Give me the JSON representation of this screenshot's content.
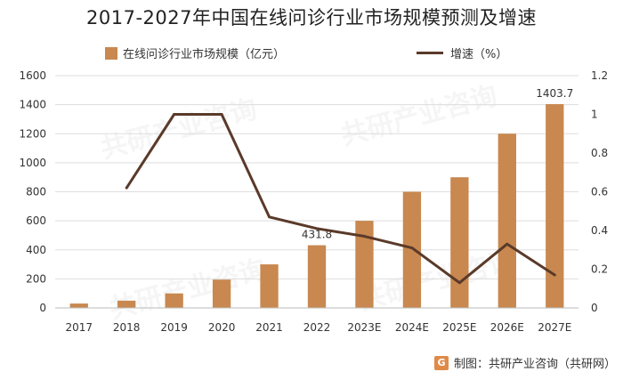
{
  "title": "2017-2027年中国在线问诊行业市场规模预测及增速",
  "legend": {
    "bar_label": "在线问诊行业市场规模（亿元）",
    "line_label": "增速（%）"
  },
  "footer": {
    "logo_text": "G",
    "source": "制图：共研产业咨询（共研网）"
  },
  "watermark": "共研产业咨询",
  "colors": {
    "bar": "#c8884f",
    "line": "#5a3a2a",
    "grid": "#dddddd"
  },
  "chart_data": {
    "type": "bar",
    "categories": [
      "2017",
      "2018",
      "2019",
      "2020",
      "2021",
      "2022",
      "2023E",
      "2024E",
      "2025E",
      "2026E",
      "2027E"
    ],
    "series": [
      {
        "name": "在线问诊行业市场规模（亿元）",
        "type": "bar",
        "axis": "left",
        "values": [
          30,
          50,
          100,
          195,
          300,
          431.8,
          600,
          800,
          900,
          1200,
          1403.7
        ]
      },
      {
        "name": "增速（%）",
        "type": "line",
        "axis": "right",
        "values": [
          null,
          0.62,
          1.0,
          1.0,
          0.47,
          0.41,
          0.37,
          0.31,
          0.13,
          0.33,
          0.17
        ]
      }
    ],
    "data_labels": [
      {
        "index": 5,
        "text": "431.8"
      },
      {
        "index": 10,
        "text": "1403.7"
      }
    ],
    "ylim_left": [
      0,
      1600
    ],
    "yticks_left": [
      "0",
      "200",
      "400",
      "600",
      "800",
      "1000",
      "1200",
      "1400",
      "1600"
    ],
    "ylim_right": [
      0,
      1.2
    ],
    "yticks_right": [
      "0",
      "0.2",
      "0.4",
      "0.6",
      "0.8",
      "1",
      "1.2"
    ],
    "grid": true,
    "legend_position": "top"
  }
}
